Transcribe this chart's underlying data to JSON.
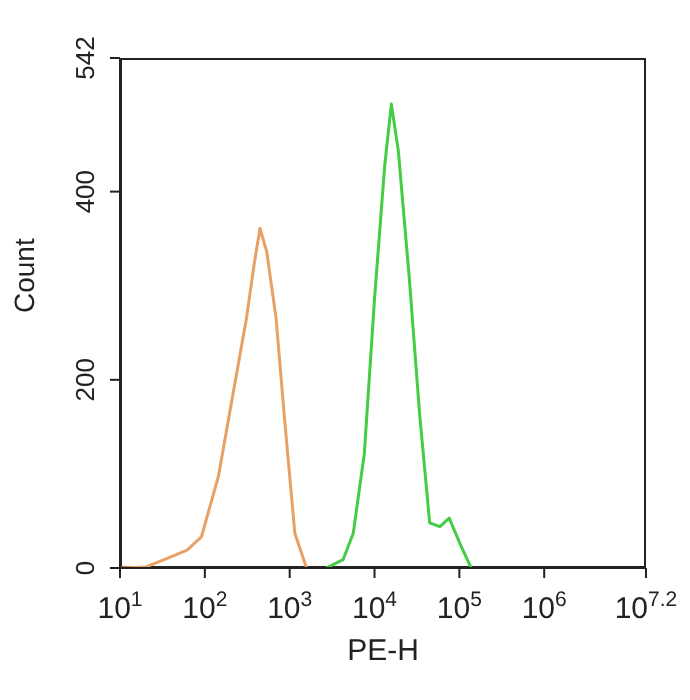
{
  "chart_data": {
    "type": "line",
    "xlabel": "PE-H",
    "ylabel": "Count",
    "log": "x",
    "xlim": [
      10,
      15848932
    ],
    "ylim": [
      0,
      542
    ],
    "xticks": [
      {
        "value": 10,
        "label": "10$^{1}$"
      },
      {
        "value": 100,
        "label": "10$^{2}$"
      },
      {
        "value": 1000,
        "label": "10$^{3}$"
      },
      {
        "value": 10000,
        "label": "10$^{4}$"
      },
      {
        "value": 100000,
        "label": "10$^{5}$"
      },
      {
        "value": 1000000,
        "label": "10$^{6}$"
      },
      {
        "value": 15848932,
        "label": "10$^{7.2}$"
      }
    ],
    "yticks": [
      0,
      200,
      400,
      542
    ],
    "marker": "none",
    "line_style": "solid",
    "series": [
      {
        "color": "#e8a064",
        "x": [
          10,
          20,
          35.5,
          61.7,
          91.2,
          145,
          209,
          309,
          380,
          447,
          537,
          692,
          871,
          1150,
          1580
        ],
        "values": [
          0,
          1,
          10,
          19,
          33,
          98,
          179,
          265,
          322,
          361,
          336,
          265,
          158,
          37,
          0
        ]
      },
      {
        "color": "#44cc44",
        "x": [
          2690,
          4270,
          5620,
          7590,
          10000,
          13200,
          15800,
          19100,
          25700,
          33900,
          44700,
          58900,
          75900,
          105000,
          138000
        ],
        "values": [
          0,
          9,
          37,
          122,
          286,
          428,
          493,
          443,
          308,
          165,
          48,
          44,
          53,
          23,
          0
        ]
      }
    ]
  }
}
